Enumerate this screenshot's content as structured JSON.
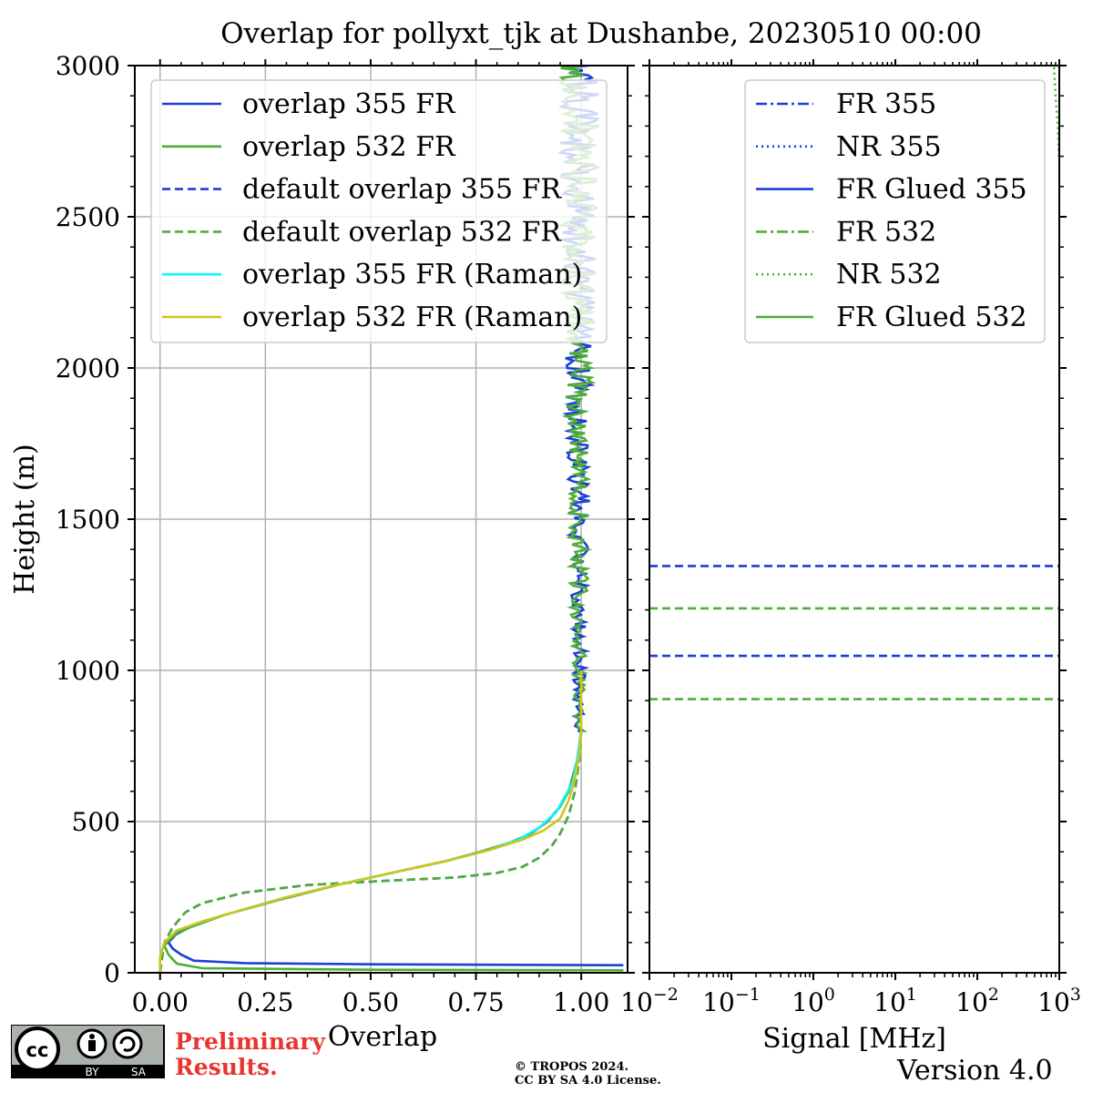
{
  "chart_data": [
    {
      "type": "line",
      "title": "Overlap for pollyxt_tjk at Dushanbe, 20230510 00:00",
      "xlabel": "Overlap",
      "ylabel": "Height (m)",
      "xlim": [
        -0.06,
        1.11
      ],
      "ylim": [
        0,
        3000
      ],
      "xticks": [
        0.0,
        0.25,
        0.5,
        0.75,
        1.0
      ],
      "xtick_labels": [
        "0.00",
        "0.25",
        "0.50",
        "0.75",
        "1.00"
      ],
      "yticks": [
        0,
        500,
        1000,
        1500,
        2000,
        2500,
        3000
      ],
      "ytick_labels": [
        "0",
        "500",
        "1000",
        "1500",
        "2000",
        "2500",
        "3000"
      ],
      "grid": true,
      "legend_position": "top-left",
      "series": [
        {
          "name": "overlap 355 FR",
          "color": "#1c3fd6",
          "style": "solid",
          "points": [
            [
              1.1,
              25
            ],
            [
              0.5,
              28
            ],
            [
              0.2,
              32
            ],
            [
              0.08,
              40
            ],
            [
              0.05,
              60
            ],
            [
              0.03,
              80
            ],
            [
              0.02,
              100
            ],
            [
              0.04,
              130
            ],
            [
              0.07,
              150
            ],
            [
              0.15,
              190
            ],
            [
              0.28,
              240
            ],
            [
              0.42,
              290
            ],
            [
              0.55,
              330
            ],
            [
              0.68,
              370
            ],
            [
              0.76,
              400
            ],
            [
              0.83,
              430
            ],
            [
              0.88,
              460
            ],
            [
              0.92,
              500
            ],
            [
              0.95,
              550
            ],
            [
              0.97,
              600
            ],
            [
              0.98,
              650
            ],
            [
              0.99,
              700
            ],
            [
              1.0,
              800
            ],
            [
              1.0,
              3000
            ]
          ]
        },
        {
          "name": "overlap 532 FR",
          "color": "#4fad3a",
          "style": "solid",
          "points": [
            [
              1.1,
              8
            ],
            [
              0.5,
              10
            ],
            [
              0.1,
              15
            ],
            [
              0.04,
              30
            ],
            [
              0.02,
              60
            ],
            [
              0.01,
              90
            ],
            [
              0.03,
              120
            ],
            [
              0.07,
              150
            ],
            [
              0.15,
              190
            ],
            [
              0.28,
              240
            ],
            [
              0.42,
              290
            ],
            [
              0.55,
              330
            ],
            [
              0.68,
              370
            ],
            [
              0.76,
              400
            ],
            [
              0.83,
              430
            ],
            [
              0.88,
              460
            ],
            [
              0.92,
              500
            ],
            [
              0.95,
              550
            ],
            [
              0.97,
              600
            ],
            [
              0.98,
              650
            ],
            [
              0.99,
              700
            ],
            [
              1.0,
              800
            ],
            [
              1.0,
              3000
            ]
          ]
        },
        {
          "name": "default overlap 355 FR",
          "color": "#1c3fd6",
          "style": "dashed",
          "points": [
            [
              0.0,
              0
            ],
            [
              0.01,
              100
            ],
            [
              0.03,
              150
            ],
            [
              0.06,
              200
            ],
            [
              0.1,
              230
            ],
            [
              0.2,
              265
            ],
            [
              0.35,
              290
            ],
            [
              0.55,
              305
            ],
            [
              0.7,
              315
            ],
            [
              0.8,
              330
            ],
            [
              0.86,
              350
            ],
            [
              0.9,
              380
            ],
            [
              0.93,
              420
            ],
            [
              0.95,
              460
            ],
            [
              0.97,
              520
            ],
            [
              0.985,
              600
            ],
            [
              0.995,
              700
            ],
            [
              1.0,
              800
            ]
          ]
        },
        {
          "name": "default overlap 532 FR",
          "color": "#4fad3a",
          "style": "dashed",
          "points": [
            [
              0.0,
              0
            ],
            [
              0.01,
              100
            ],
            [
              0.03,
              150
            ],
            [
              0.06,
              200
            ],
            [
              0.1,
              230
            ],
            [
              0.2,
              265
            ],
            [
              0.35,
              290
            ],
            [
              0.55,
              305
            ],
            [
              0.7,
              315
            ],
            [
              0.8,
              330
            ],
            [
              0.86,
              350
            ],
            [
              0.9,
              380
            ],
            [
              0.93,
              420
            ],
            [
              0.95,
              460
            ],
            [
              0.97,
              520
            ],
            [
              0.985,
              600
            ],
            [
              0.995,
              700
            ],
            [
              1.0,
              800
            ]
          ]
        },
        {
          "name": "overlap 355 FR (Raman)",
          "color": "#12f5ff",
          "style": "solid",
          "points": [
            [
              0.0,
              0
            ],
            [
              0.0,
              50
            ],
            [
              0.01,
              100
            ],
            [
              0.04,
              140
            ],
            [
              0.1,
              170
            ],
            [
              0.2,
              210
            ],
            [
              0.3,
              250
            ],
            [
              0.42,
              290
            ],
            [
              0.55,
              330
            ],
            [
              0.68,
              370
            ],
            [
              0.78,
              405
            ],
            [
              0.85,
              440
            ],
            [
              0.9,
              480
            ],
            [
              0.94,
              530
            ],
            [
              0.96,
              580
            ],
            [
              0.98,
              630
            ],
            [
              0.99,
              700
            ],
            [
              1.0,
              800
            ]
          ]
        },
        {
          "name": "overlap 532 FR (Raman)",
          "color": "#cfc51a",
          "style": "solid",
          "points": [
            [
              0.0,
              0
            ],
            [
              0.0,
              50
            ],
            [
              0.01,
              100
            ],
            [
              0.04,
              140
            ],
            [
              0.1,
              170
            ],
            [
              0.2,
              210
            ],
            [
              0.3,
              250
            ],
            [
              0.42,
              290
            ],
            [
              0.55,
              330
            ],
            [
              0.68,
              370
            ],
            [
              0.78,
              405
            ],
            [
              0.86,
              440
            ],
            [
              0.91,
              470
            ],
            [
              0.95,
              510
            ],
            [
              0.97,
              570
            ],
            [
              0.985,
              640
            ],
            [
              0.995,
              720
            ],
            [
              1.0,
              800
            ],
            [
              1.0,
              1000
            ]
          ]
        }
      ]
    },
    {
      "type": "line",
      "xlabel": "Signal [MHz]",
      "xscale": "log",
      "xlim": [
        0.01,
        1000
      ],
      "ylim": [
        0,
        3000
      ],
      "xtick_exponents": [
        "−2",
        "−1",
        "0",
        "1",
        "2",
        "3"
      ],
      "xtick_base": "10",
      "legend_position": "top-right",
      "series": [
        {
          "name": "FR 355",
          "color": "#1c3fd6",
          "style": "dashdot",
          "points": []
        },
        {
          "name": "NR 355",
          "color": "#1c3fd6",
          "style": "dotted",
          "points": []
        },
        {
          "name": "FR Glued 355",
          "color": "#1c3fd6",
          "style": "solid",
          "points": []
        },
        {
          "name": "FR 532",
          "color": "#4fad3a",
          "style": "dashdot",
          "points": []
        },
        {
          "name": "NR 532",
          "color": "#4fad3a",
          "style": "dotted",
          "points": [
            [
              990,
              2700
            ],
            [
              960,
              2800
            ],
            [
              900,
              2900
            ],
            [
              860,
              3000
            ]
          ]
        },
        {
          "name": "FR Glued 532",
          "color": "#4fad3a",
          "style": "solid",
          "points": []
        }
      ],
      "hlines": [
        {
          "y": 1345,
          "color": "#1c3fd6",
          "style": "dashed"
        },
        {
          "y": 1205,
          "color": "#4fad3a",
          "style": "dashed"
        },
        {
          "y": 1048,
          "color": "#1c3fd6",
          "style": "dashed"
        },
        {
          "y": 905,
          "color": "#4fad3a",
          "style": "dashed"
        }
      ]
    }
  ],
  "footer": {
    "prelim_line1": "Preliminary",
    "prelim_line2": "Results.",
    "copyright_line1": "© TROPOS 2024.",
    "copyright_line2": "CC BY SA 4.0 License.",
    "version": "Version 4.0",
    "license_badge": "cc-by-sa-icon",
    "badge_by": "BY",
    "badge_sa": "SA",
    "badge_cc": "cc"
  }
}
